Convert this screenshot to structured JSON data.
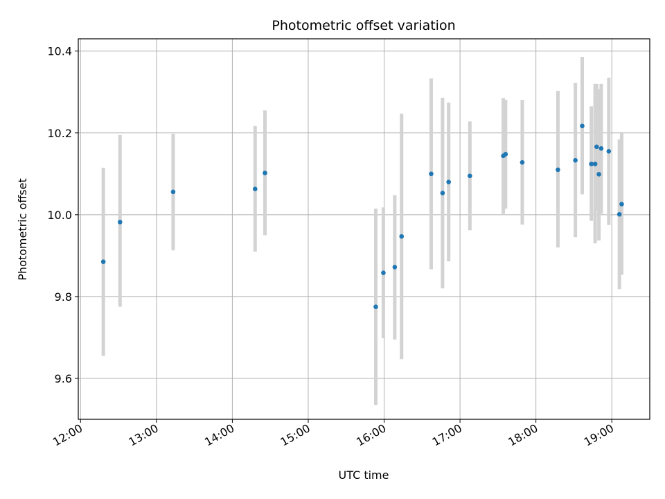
{
  "chart_data": {
    "type": "scatter",
    "title": "Photometric offset variation",
    "xlabel": "UTC time",
    "ylabel": "Photometric offset",
    "x_unit": "hours UTC",
    "xlim": [
      11.97,
      19.5
    ],
    "ylim": [
      9.5,
      10.43
    ],
    "xticks": [
      12,
      13,
      14,
      15,
      16,
      17,
      18,
      19
    ],
    "xtick_labels": [
      "12:00",
      "13:00",
      "14:00",
      "15:00",
      "16:00",
      "17:00",
      "18:00",
      "19:00"
    ],
    "yticks": [
      9.6,
      9.8,
      10.0,
      10.2,
      10.4
    ],
    "ytick_labels": [
      "9.6",
      "9.8",
      "10.0",
      "10.2",
      "10.4"
    ],
    "grid": true,
    "series": [
      {
        "marker_color": "#1f77b4",
        "error_color": "#d3d3d3",
        "points": [
          {
            "x": 12.3,
            "y": 9.885,
            "lo": 9.655,
            "hi": 10.115
          },
          {
            "x": 12.52,
            "y": 9.982,
            "lo": 9.775,
            "hi": 10.195
          },
          {
            "x": 13.22,
            "y": 10.056,
            "lo": 9.913,
            "hi": 10.198
          },
          {
            "x": 14.3,
            "y": 10.063,
            "lo": 9.91,
            "hi": 10.217
          },
          {
            "x": 14.43,
            "y": 10.102,
            "lo": 9.95,
            "hi": 10.255
          },
          {
            "x": 15.89,
            "y": 9.775,
            "lo": 9.535,
            "hi": 10.015
          },
          {
            "x": 15.99,
            "y": 9.858,
            "lo": 9.698,
            "hi": 10.018
          },
          {
            "x": 16.14,
            "y": 9.872,
            "lo": 9.695,
            "hi": 10.048
          },
          {
            "x": 16.23,
            "y": 9.947,
            "lo": 9.647,
            "hi": 10.247
          },
          {
            "x": 16.62,
            "y": 10.1,
            "lo": 9.867,
            "hi": 10.333
          },
          {
            "x": 16.77,
            "y": 10.053,
            "lo": 9.82,
            "hi": 10.286
          },
          {
            "x": 16.85,
            "y": 10.08,
            "lo": 9.886,
            "hi": 10.274
          },
          {
            "x": 17.13,
            "y": 10.095,
            "lo": 9.962,
            "hi": 10.228
          },
          {
            "x": 17.57,
            "y": 10.144,
            "lo": 10.002,
            "hi": 10.285
          },
          {
            "x": 17.6,
            "y": 10.148,
            "lo": 10.015,
            "hi": 10.281
          },
          {
            "x": 17.82,
            "y": 10.128,
            "lo": 9.976,
            "hi": 10.281
          },
          {
            "x": 18.29,
            "y": 10.11,
            "lo": 9.92,
            "hi": 10.303
          },
          {
            "x": 18.52,
            "y": 10.133,
            "lo": 9.945,
            "hi": 10.322
          },
          {
            "x": 18.61,
            "y": 10.217,
            "lo": 10.05,
            "hi": 10.386
          },
          {
            "x": 18.73,
            "y": 10.124,
            "lo": 9.985,
            "hi": 10.265
          },
          {
            "x": 18.78,
            "y": 10.124,
            "lo": 9.93,
            "hi": 10.32
          },
          {
            "x": 18.8,
            "y": 10.166,
            "lo": 10.01,
            "hi": 10.32
          },
          {
            "x": 18.83,
            "y": 10.099,
            "lo": 9.937,
            "hi": 10.307
          },
          {
            "x": 18.86,
            "y": 10.162,
            "lo": 10.002,
            "hi": 10.32
          },
          {
            "x": 18.96,
            "y": 10.155,
            "lo": 9.975,
            "hi": 10.335
          },
          {
            "x": 19.1,
            "y": 10.001,
            "lo": 9.818,
            "hi": 10.184
          },
          {
            "x": 19.13,
            "y": 10.026,
            "lo": 9.853,
            "hi": 10.199
          }
        ]
      }
    ]
  }
}
